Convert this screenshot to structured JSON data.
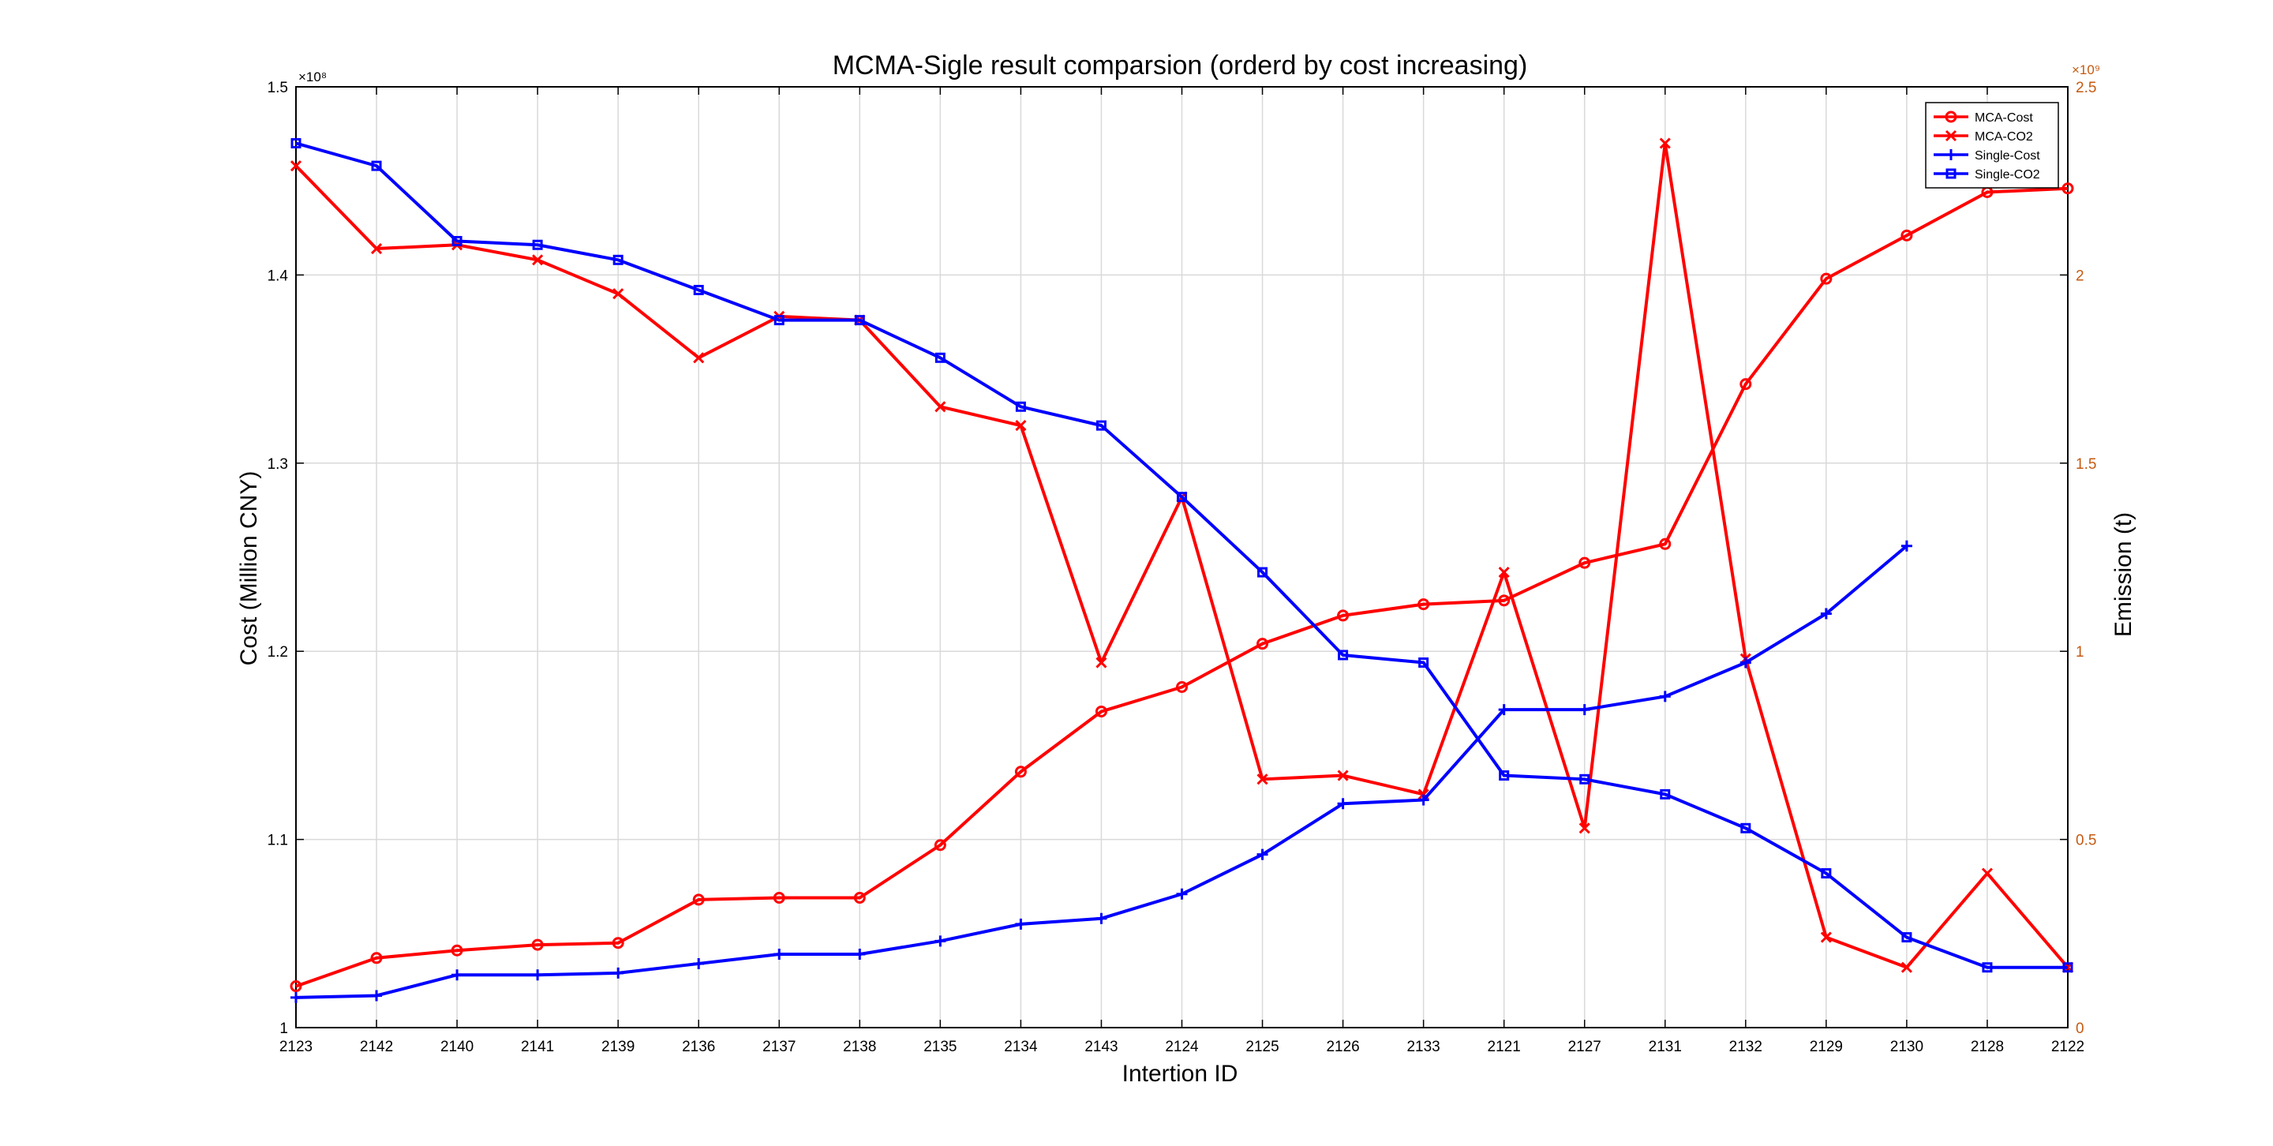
{
  "chart_data": {
    "type": "line",
    "title": "MCMA-Sigle result comparsion (orderd by cost increasing)",
    "xlabel": "Intertion ID",
    "ylabel_left": "Cost (Million CNY)",
    "ylabel_right": "Emission (t)",
    "left_exponent": "×10⁸",
    "right_exponent": "×10⁹",
    "ylim_left": [
      1.0,
      1.5
    ],
    "ylim_right": [
      0,
      2.5
    ],
    "yticks_left": [
      "1",
      "1.1",
      "1.2",
      "1.3",
      "1.4",
      "1.5"
    ],
    "yticks_right": [
      "0",
      "0.5",
      "1",
      "1.5",
      "2",
      "2.5"
    ],
    "grid": true,
    "legend_position": "top-right",
    "categories": [
      "2123",
      "2142",
      "2140",
      "2141",
      "2139",
      "2136",
      "2137",
      "2138",
      "2135",
      "2134",
      "2143",
      "2124",
      "2125",
      "2126",
      "2133",
      "2121",
      "2127",
      "2131",
      "2132",
      "2129",
      "2130",
      "2128",
      "2122"
    ],
    "series": [
      {
        "name": "MCA-Cost",
        "axis": "left",
        "color": "#ff0000",
        "marker": "circle",
        "values": [
          1.022,
          1.037,
          1.041,
          1.044,
          1.045,
          1.068,
          1.069,
          1.069,
          1.097,
          1.136,
          1.168,
          1.181,
          1.204,
          1.219,
          1.225,
          1.227,
          1.247,
          1.257,
          1.342,
          1.398,
          1.421,
          1.444,
          1.446
        ]
      },
      {
        "name": "MCA-CO2",
        "axis": "right",
        "color": "#ff0000",
        "marker": "x",
        "values": [
          2.29,
          2.07,
          2.08,
          2.04,
          1.95,
          1.78,
          1.89,
          1.88,
          1.65,
          1.6,
          0.97,
          1.41,
          0.66,
          0.67,
          0.62,
          1.21,
          0.53,
          2.35,
          0.98,
          0.24,
          0.16,
          0.41,
          0.16
        ]
      },
      {
        "name": "Single-Cost",
        "axis": "left",
        "color": "#0000ff",
        "marker": "plus",
        "values": [
          1.016,
          1.017,
          1.028,
          1.028,
          1.029,
          1.034,
          1.039,
          1.039,
          1.046,
          1.055,
          1.058,
          1.071,
          1.092,
          1.119,
          1.121,
          1.169,
          1.169,
          1.176,
          1.194,
          1.22,
          1.256,
          null,
          null
        ]
      },
      {
        "name": "Single-CO2",
        "axis": "right",
        "color": "#0000ff",
        "marker": "square",
        "values": [
          2.35,
          2.29,
          2.09,
          2.08,
          2.04,
          1.96,
          1.88,
          1.88,
          1.78,
          1.65,
          1.6,
          1.41,
          1.21,
          0.99,
          0.97,
          0.67,
          0.66,
          0.62,
          0.53,
          0.41,
          0.24,
          0.16,
          0.16
        ]
      }
    ]
  }
}
